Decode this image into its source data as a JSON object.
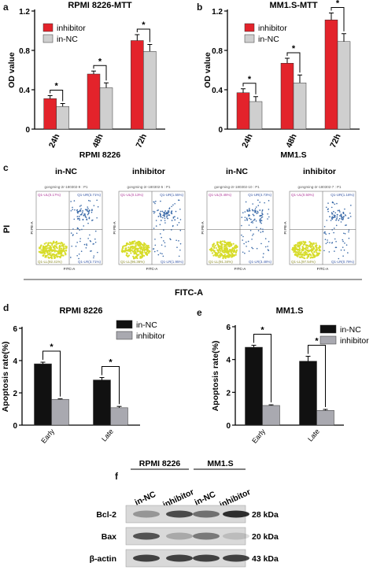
{
  "panels": {
    "a": "a",
    "b": "b",
    "c": "c",
    "d": "d",
    "e": "e",
    "f": "f"
  },
  "colors": {
    "inhibitor_red": "#e3232b",
    "nc_gray": "#cfcfcf",
    "black": "#111111",
    "gray2": "#a9a9b0",
    "dot_yellow": "#d7dc2a",
    "dot_blue": "#3a6aa8"
  },
  "chart_data": [
    {
      "id": "panel-a",
      "type": "bar",
      "title": "RPMI 8226-MTT",
      "ylabel": "OD value",
      "ylim": [
        0,
        1.2
      ],
      "yticks": [
        "0",
        "0.4",
        "0.8",
        "1.2"
      ],
      "categories": [
        "24h",
        "48h",
        "72h"
      ],
      "series": [
        {
          "name": "inhibitor",
          "values": [
            0.31,
            0.56,
            0.9
          ],
          "errors": [
            0.03,
            0.03,
            0.06
          ]
        },
        {
          "name": "in-NC",
          "values": [
            0.23,
            0.42,
            0.79
          ],
          "errors": [
            0.03,
            0.05,
            0.07
          ]
        }
      ],
      "sig": [
        "*",
        "*",
        "*"
      ],
      "legend": "top-left",
      "group_label": "RPMI 8226"
    },
    {
      "id": "panel-b",
      "type": "bar",
      "title": "MM1.S-MTT",
      "ylabel": "OD value",
      "ylim": [
        0,
        1.2
      ],
      "yticks": [
        "0",
        "0.4",
        "0.8",
        "1.2"
      ],
      "categories": [
        "24h",
        "48h",
        "72h"
      ],
      "series": [
        {
          "name": "inhibitor",
          "values": [
            0.37,
            0.67,
            1.11
          ],
          "errors": [
            0.04,
            0.05,
            0.07
          ]
        },
        {
          "name": "in-NC",
          "values": [
            0.28,
            0.47,
            0.89
          ],
          "errors": [
            0.05,
            0.08,
            0.08
          ]
        }
      ],
      "sig": [
        "*",
        "*",
        "*"
      ],
      "legend": "top-left",
      "group_label": "MM1.S"
    },
    {
      "id": "panel-d",
      "type": "bar",
      "title": "RPMI 8226",
      "ylabel": "Apoptosis rate(%)",
      "ylim": [
        0,
        6
      ],
      "yticks": [
        "0",
        "2",
        "4",
        "6"
      ],
      "categories": [
        "Early",
        "Late"
      ],
      "series": [
        {
          "name": "in-NC",
          "values": [
            3.8,
            2.8
          ],
          "errors": [
            0.1,
            0.15
          ]
        },
        {
          "name": "inhibitor",
          "values": [
            1.6,
            1.08
          ],
          "errors": [
            0.03,
            0.08
          ]
        }
      ],
      "sig": [
        "*",
        "*"
      ],
      "legend": "top-right"
    },
    {
      "id": "panel-e",
      "type": "bar",
      "title": "MM1.S",
      "ylabel": "Apoptosis rate(%)",
      "ylim": [
        0,
        6
      ],
      "yticks": [
        "0",
        "2",
        "4",
        "6"
      ],
      "categories": [
        "Early",
        "Late"
      ],
      "series": [
        {
          "name": "in-NC",
          "values": [
            4.75,
            3.9
          ],
          "errors": [
            0.12,
            0.3
          ]
        },
        {
          "name": "inhibitor",
          "values": [
            1.2,
            0.9
          ],
          "errors": [
            0.04,
            0.06
          ]
        }
      ],
      "sig": [
        "*",
        "*"
      ],
      "legend": "top-right"
    }
  ],
  "flow": {
    "groups": [
      "RPMI 8226",
      "MM1.S"
    ],
    "col_labels": [
      "in-NC",
      "inhibitor",
      "in-NC",
      "inhibitor"
    ],
    "ylabel": "PI",
    "xlabel": "FITC-A",
    "plots": [
      {
        "header": "gongming-2r-180302-9 : P1",
        "q1": "Q1-UL(0.17%)",
        "q2": "Q1-UR(3.71%)",
        "q3": "Q1-LL(92.41%)",
        "q4": "Q1-LR(3.71%)",
        "ax_y": "PI PE-A",
        "ax_x": "FITC-A"
      },
      {
        "header": "gongming-2r-180302-5 : P1",
        "q1": "Q1-UL(0.13%)",
        "q2": "Q1-UR(1.55%)",
        "q3": "Q1-LL(96.36%)",
        "q4": "Q1-LR(1.95%)",
        "ax_y": "PI PE-A",
        "ax_x": "FITC-A"
      },
      {
        "header": "gongming-2r-180302-10 : P1",
        "q1": "Q1-UL(0.45%)",
        "q2": "Q1-UR(4.73%)",
        "q3": "Q1-LL(91.34%)",
        "q4": "Q1-LR(3.48%)",
        "ax_y": "PI PE-A",
        "ax_x": "FITC-A"
      },
      {
        "header": "gongming-2r-180302-7 : P1",
        "q1": "Q1-UL(0.50%)",
        "q2": "Q1-UR(1.18%)",
        "q3": "Q1-LL(97.54%)",
        "q4": "Q1-LR(0.79%)",
        "ax_y": "PI PE-A",
        "ax_x": "FITC-A"
      }
    ]
  },
  "western": {
    "groups": [
      "RPMI 8226",
      "MM1.S"
    ],
    "lanes": [
      "in-NC",
      "inhibitor",
      "in-NC",
      "inhibitor"
    ],
    "rows": [
      {
        "name": "Bcl-2",
        "size": "28 kDa"
      },
      {
        "name": "Bax",
        "size": "20 kDa"
      },
      {
        "name": "β-actin",
        "size": "43 kDa"
      }
    ]
  }
}
